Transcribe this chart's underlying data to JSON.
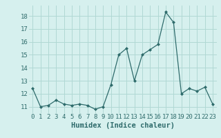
{
  "x": [
    0,
    1,
    2,
    3,
    4,
    5,
    6,
    7,
    8,
    9,
    10,
    11,
    12,
    13,
    14,
    15,
    16,
    17,
    18,
    19,
    20,
    21,
    22,
    23
  ],
  "y": [
    12.4,
    11.0,
    11.1,
    11.5,
    11.2,
    11.1,
    11.2,
    11.1,
    10.8,
    11.0,
    12.7,
    15.0,
    15.5,
    13.0,
    15.0,
    15.4,
    15.8,
    18.3,
    17.5,
    12.0,
    12.4,
    12.2,
    12.5,
    11.2
  ],
  "xlabel": "Humidex (Indice chaleur)",
  "ylim": [
    10.5,
    18.8
  ],
  "xlim": [
    -0.5,
    23.5
  ],
  "yticks": [
    11,
    12,
    13,
    14,
    15,
    16,
    17,
    18
  ],
  "xticks": [
    0,
    1,
    2,
    3,
    4,
    5,
    6,
    7,
    8,
    9,
    10,
    11,
    12,
    13,
    14,
    15,
    16,
    17,
    18,
    19,
    20,
    21,
    22,
    23
  ],
  "line_color": "#2e6b6b",
  "marker": "D",
  "marker_size": 2.0,
  "background_color": "#d6f0ee",
  "grid_color": "#b0d8d4",
  "tick_label_fontsize": 6.5,
  "xlabel_fontsize": 7.5
}
